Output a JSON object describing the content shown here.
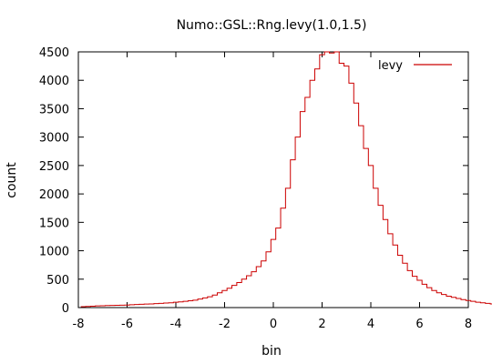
{
  "chart_data": {
    "type": "line",
    "style": "step",
    "title": "Numo::GSL::Rng.levy(1.0,1.5)",
    "xlabel": "bin",
    "ylabel": "count",
    "xlim": [
      -8,
      8
    ],
    "ylim": [
      0,
      4500
    ],
    "xticks": [
      -8,
      -6,
      -4,
      -2,
      0,
      2,
      4,
      6,
      8
    ],
    "yticks": [
      0,
      500,
      1000,
      1500,
      2000,
      2500,
      3000,
      3500,
      4000,
      4500
    ],
    "grid": false,
    "legend": {
      "position": "top-right"
    },
    "series": [
      {
        "name": "levy",
        "color": "#cc0000",
        "bin_width": 0.2,
        "x_start": -7.8,
        "values": [
          15,
          20,
          25,
          30,
          32,
          35,
          38,
          40,
          42,
          45,
          50,
          55,
          58,
          62,
          65,
          70,
          75,
          80,
          85,
          95,
          100,
          110,
          120,
          130,
          150,
          170,
          190,
          220,
          260,
          300,
          340,
          390,
          440,
          500,
          560,
          630,
          720,
          820,
          980,
          1200,
          1400,
          1750,
          2100,
          2600,
          3000,
          3450,
          3700,
          4000,
          4200,
          4450,
          4500,
          4480,
          4500,
          4300,
          4250,
          3950,
          3600,
          3200,
          2800,
          2500,
          2100,
          1800,
          1550,
          1300,
          1100,
          920,
          780,
          650,
          550,
          480,
          410,
          350,
          300,
          260,
          230,
          200,
          180,
          160,
          140,
          125,
          110,
          95,
          85,
          75,
          65,
          60,
          55,
          50,
          45,
          40,
          38,
          35,
          32,
          30,
          28,
          25,
          22,
          20,
          18,
          15
        ]
      }
    ]
  }
}
